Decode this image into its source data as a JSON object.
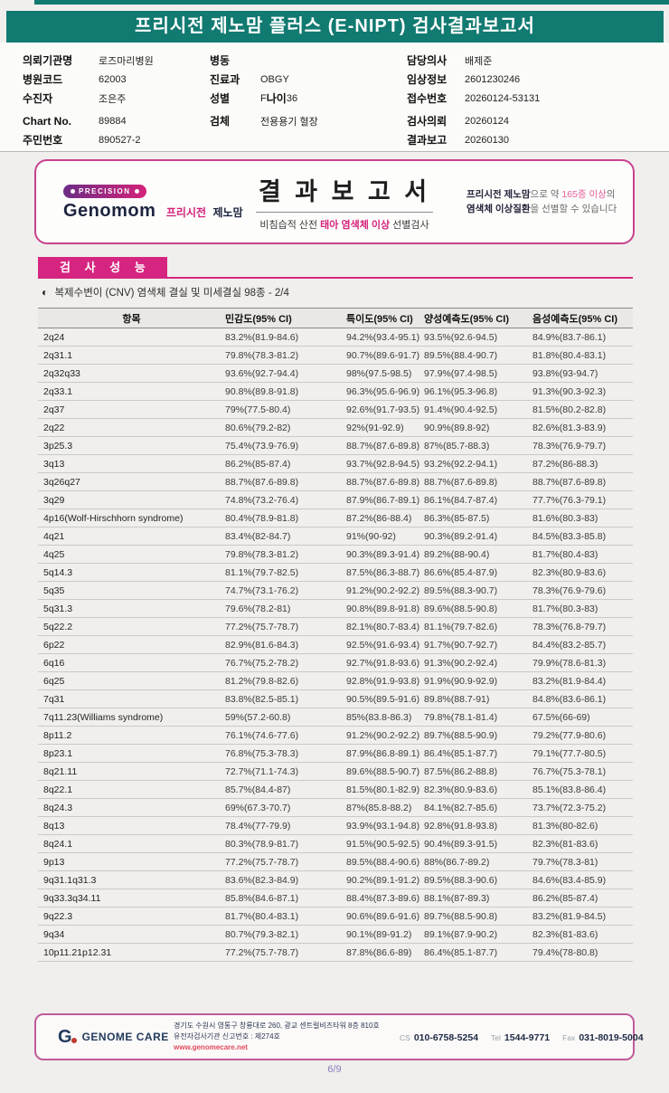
{
  "colors": {
    "teal": "#117a71",
    "magenta": "#d62580",
    "box_border_pink": "#c9418d",
    "navy": "#233a5c",
    "page_number_violet": "#8b7cc0",
    "website_red": "#e24a5e"
  },
  "banner": {
    "title": "프리시전 제노맘 플러스 (E-NIPT) 검사결과보고서"
  },
  "patient_info": {
    "columns": [
      {
        "key": "left",
        "rows": [
          [
            {
              "label": "의뢰기관명",
              "value": "로즈마리병원"
            }
          ],
          [
            {
              "label": "병원코드",
              "value": "62003"
            }
          ],
          [
            {
              "label": "수진자",
              "value": "조은주"
            }
          ],
          [
            {
              "label": "Chart No.",
              "value": "89884"
            }
          ],
          [
            {
              "label": "주민번호",
              "value": "890527-2"
            }
          ]
        ]
      },
      {
        "key": "middle",
        "rows": [
          [
            {
              "label": "병동",
              "value": ""
            }
          ],
          [
            {
              "label": "진료과",
              "value": "OBGY"
            }
          ],
          [
            {
              "label": "성별",
              "value": "F"
            },
            {
              "label": "나이",
              "value": "36"
            }
          ],
          [
            {
              "label": "검체",
              "value": "전용용기 혈장"
            }
          ]
        ]
      },
      {
        "key": "right",
        "rows": [
          [
            {
              "label": "담당의사",
              "value": "배제준"
            }
          ],
          [
            {
              "label": "임상정보",
              "value": "2601230246"
            }
          ],
          [
            {
              "label": "접수번호",
              "value": "20260124-53131"
            }
          ],
          [
            {
              "label": "검사의뢰",
              "value": "20260124"
            }
          ],
          [
            {
              "label": "결과보고",
              "value": "20260130"
            }
          ]
        ]
      }
    ]
  },
  "report_header": {
    "badge_label": "PRECISION",
    "brand_en": "Genomom",
    "brand_kr_pink": "프리시전",
    "brand_kr_dark": "제노맘",
    "title": "결 과 보 고 서",
    "subtitle_prefix": "비침습적 산전 ",
    "subtitle_highlight": "태아 염색체 이상",
    "subtitle_suffix": " 선별검사",
    "note_l1_bold": "프리시전 제노맘",
    "note_l1_mid": "으로 약 ",
    "note_l1_pink": "165종 이상",
    "note_l1_end": "의",
    "note_l2_bold": "염색체 이상질환",
    "note_l2_end": "을 선별할 수 있습니다"
  },
  "section": {
    "title": "검 사 성 능",
    "bullet": "◐",
    "subtitle": "복제수변이 (CNV) 염색체 결실 및 미세결실 98종 - 2/4"
  },
  "table": {
    "headers": [
      "항목",
      "민감도(95% CI)",
      "특이도(95% CI)",
      "양성예측도(95% CI)",
      "음성예측도(95% CI)"
    ],
    "rows": [
      [
        "2q24",
        "83.2%(81.9-84.6)",
        "94.2%(93.4-95.1)",
        "93.5%(92.6-94.5)",
        "84.9%(83.7-86.1)"
      ],
      [
        "2q31.1",
        "79.8%(78.3-81.2)",
        "90.7%(89.6-91.7)",
        "89.5%(88.4-90.7)",
        "81.8%(80.4-83.1)"
      ],
      [
        "2q32q33",
        "93.6%(92.7-94.4)",
        "98%(97.5-98.5)",
        "97.9%(97.4-98.5)",
        "93.8%(93-94.7)"
      ],
      [
        "2q33.1",
        "90.8%(89.8-91.8)",
        "96.3%(95.6-96.9)",
        "96.1%(95.3-96.8)",
        "91.3%(90.3-92.3)"
      ],
      [
        "2q37",
        "79%(77.5-80.4)",
        "92.6%(91.7-93.5)",
        "91.4%(90.4-92.5)",
        "81.5%(80.2-82.8)"
      ],
      [
        "2q22",
        "80.6%(79.2-82)",
        "92%(91-92.9)",
        "90.9%(89.8-92)",
        "82.6%(81.3-83.9)"
      ],
      [
        "3p25.3",
        "75.4%(73.9-76.9)",
        "88.7%(87.6-89.8)",
        "87%(85.7-88.3)",
        "78.3%(76.9-79.7)"
      ],
      [
        "3q13",
        "86.2%(85-87.4)",
        "93.7%(92.8-94.5)",
        "93.2%(92.2-94.1)",
        "87.2%(86-88.3)"
      ],
      [
        "3q26q27",
        "88.7%(87.6-89.8)",
        "88.7%(87.6-89.8)",
        "88.7%(87.6-89.8)",
        "88.7%(87.6-89.8)"
      ],
      [
        "3q29",
        "74.8%(73.2-76.4)",
        "87.9%(86.7-89.1)",
        "86.1%(84.7-87.4)",
        "77.7%(76.3-79.1)"
      ],
      [
        "4p16(Wolf-Hirschhorn syndrome)",
        "80.4%(78.9-81.8)",
        "87.2%(86-88.4)",
        "86.3%(85-87.5)",
        "81.6%(80.3-83)"
      ],
      [
        "4q21",
        "83.4%(82-84.7)",
        "91%(90-92)",
        "90.3%(89.2-91.4)",
        "84.5%(83.3-85.8)"
      ],
      [
        "4q25",
        "79.8%(78.3-81.2)",
        "90.3%(89.3-91.4)",
        "89.2%(88-90.4)",
        "81.7%(80.4-83)"
      ],
      [
        "5q14.3",
        "81.1%(79.7-82.5)",
        "87.5%(86.3-88.7)",
        "86.6%(85.4-87.9)",
        "82.3%(80.9-83.6)"
      ],
      [
        "5q35",
        "74.7%(73.1-76.2)",
        "91.2%(90.2-92.2)",
        "89.5%(88.3-90.7)",
        "78.3%(76.9-79.6)"
      ],
      [
        "5q31.3",
        "79.6%(78.2-81)",
        "90.8%(89.8-91.8)",
        "89.6%(88.5-90.8)",
        "81.7%(80.3-83)"
      ],
      [
        "5q22.2",
        "77.2%(75.7-78.7)",
        "82.1%(80.7-83.4)",
        "81.1%(79.7-82.6)",
        "78.3%(76.8-79.7)"
      ],
      [
        "6p22",
        "82.9%(81.6-84.3)",
        "92.5%(91.6-93.4)",
        "91.7%(90.7-92.7)",
        "84.4%(83.2-85.7)"
      ],
      [
        "6q16",
        "76.7%(75.2-78.2)",
        "92.7%(91.8-93.6)",
        "91.3%(90.2-92.4)",
        "79.9%(78.6-81.3)"
      ],
      [
        "6q25",
        "81.2%(79.8-82.6)",
        "92.8%(91.9-93.8)",
        "91.9%(90.9-92.9)",
        "83.2%(81.9-84.4)"
      ],
      [
        "7q31",
        "83.8%(82.5-85.1)",
        "90.5%(89.5-91.6)",
        "89.8%(88.7-91)",
        "84.8%(83.6-86.1)"
      ],
      [
        "7q11.23(Williams syndrome)",
        "59%(57.2-60.8)",
        "85%(83.8-86.3)",
        "79.8%(78.1-81.4)",
        "67.5%(66-69)"
      ],
      [
        "8p11.2",
        "76.1%(74.6-77.6)",
        "91.2%(90.2-92.2)",
        "89.7%(88.5-90.9)",
        "79.2%(77.9-80.6)"
      ],
      [
        "8p23.1",
        "76.8%(75.3-78.3)",
        "87.9%(86.8-89.1)",
        "86.4%(85.1-87.7)",
        "79.1%(77.7-80.5)"
      ],
      [
        "8q21.11",
        "72.7%(71.1-74.3)",
        "89.6%(88.5-90.7)",
        "87.5%(86.2-88.8)",
        "76.7%(75.3-78.1)"
      ],
      [
        "8q22.1",
        "85.7%(84.4-87)",
        "81.5%(80.1-82.9)",
        "82.3%(80.9-83.6)",
        "85.1%(83.8-86.4)"
      ],
      [
        "8q24.3",
        "69%(67.3-70.7)",
        "87%(85.8-88.2)",
        "84.1%(82.7-85.6)",
        "73.7%(72.3-75.2)"
      ],
      [
        "8q13",
        "78.4%(77-79.9)",
        "93.9%(93.1-94.8)",
        "92.8%(91.8-93.8)",
        "81.3%(80-82.6)"
      ],
      [
        "8q24.1",
        "80.3%(78.9-81.7)",
        "91.5%(90.5-92.5)",
        "90.4%(89.3-91.5)",
        "82.3%(81-83.6)"
      ],
      [
        "9p13",
        "77.2%(75.7-78.7)",
        "89.5%(88.4-90.6)",
        "88%(86.7-89.2)",
        "79.7%(78.3-81)"
      ],
      [
        "9q31.1q31.3",
        "83.6%(82.3-84.9)",
        "90.2%(89.1-91.2)",
        "89.5%(88.3-90.6)",
        "84.6%(83.4-85.9)"
      ],
      [
        "9q33.3q34.11",
        "85.8%(84.6-87.1)",
        "88.4%(87.3-89.6)",
        "88.1%(87-89.3)",
        "86.2%(85-87.4)"
      ],
      [
        "9q22.3",
        "81.7%(80.4-83.1)",
        "90.6%(89.6-91.6)",
        "89.7%(88.5-90.8)",
        "83.2%(81.9-84.5)"
      ],
      [
        "9q34",
        "80.7%(79.3-82.1)",
        "90.1%(89-91.2)",
        "89.1%(87.9-90.2)",
        "82.3%(81-83.6)"
      ],
      [
        "10p11.21p12.31",
        "77.2%(75.7-78.7)",
        "87.8%(86.6-89)",
        "86.4%(85.1-87.7)",
        "79.4%(78-80.8)"
      ]
    ]
  },
  "footer": {
    "logo_g": "G",
    "logo_text": "GENOME CARE",
    "address_line1": "경기도 수원시 영통구 창룡대로 260, 광교 센트럴비즈타워 8층 810호",
    "address_line2": "유전자검사기관 신고번호 : 제274호",
    "website": "www.genomecare.net",
    "contacts": [
      {
        "label": "CS",
        "number": "010-6758-5254"
      },
      {
        "label": "Tel",
        "number": "1544-9771"
      },
      {
        "label": "Fax",
        "number": "031-8019-5004"
      }
    ]
  },
  "page_number": "6/9"
}
